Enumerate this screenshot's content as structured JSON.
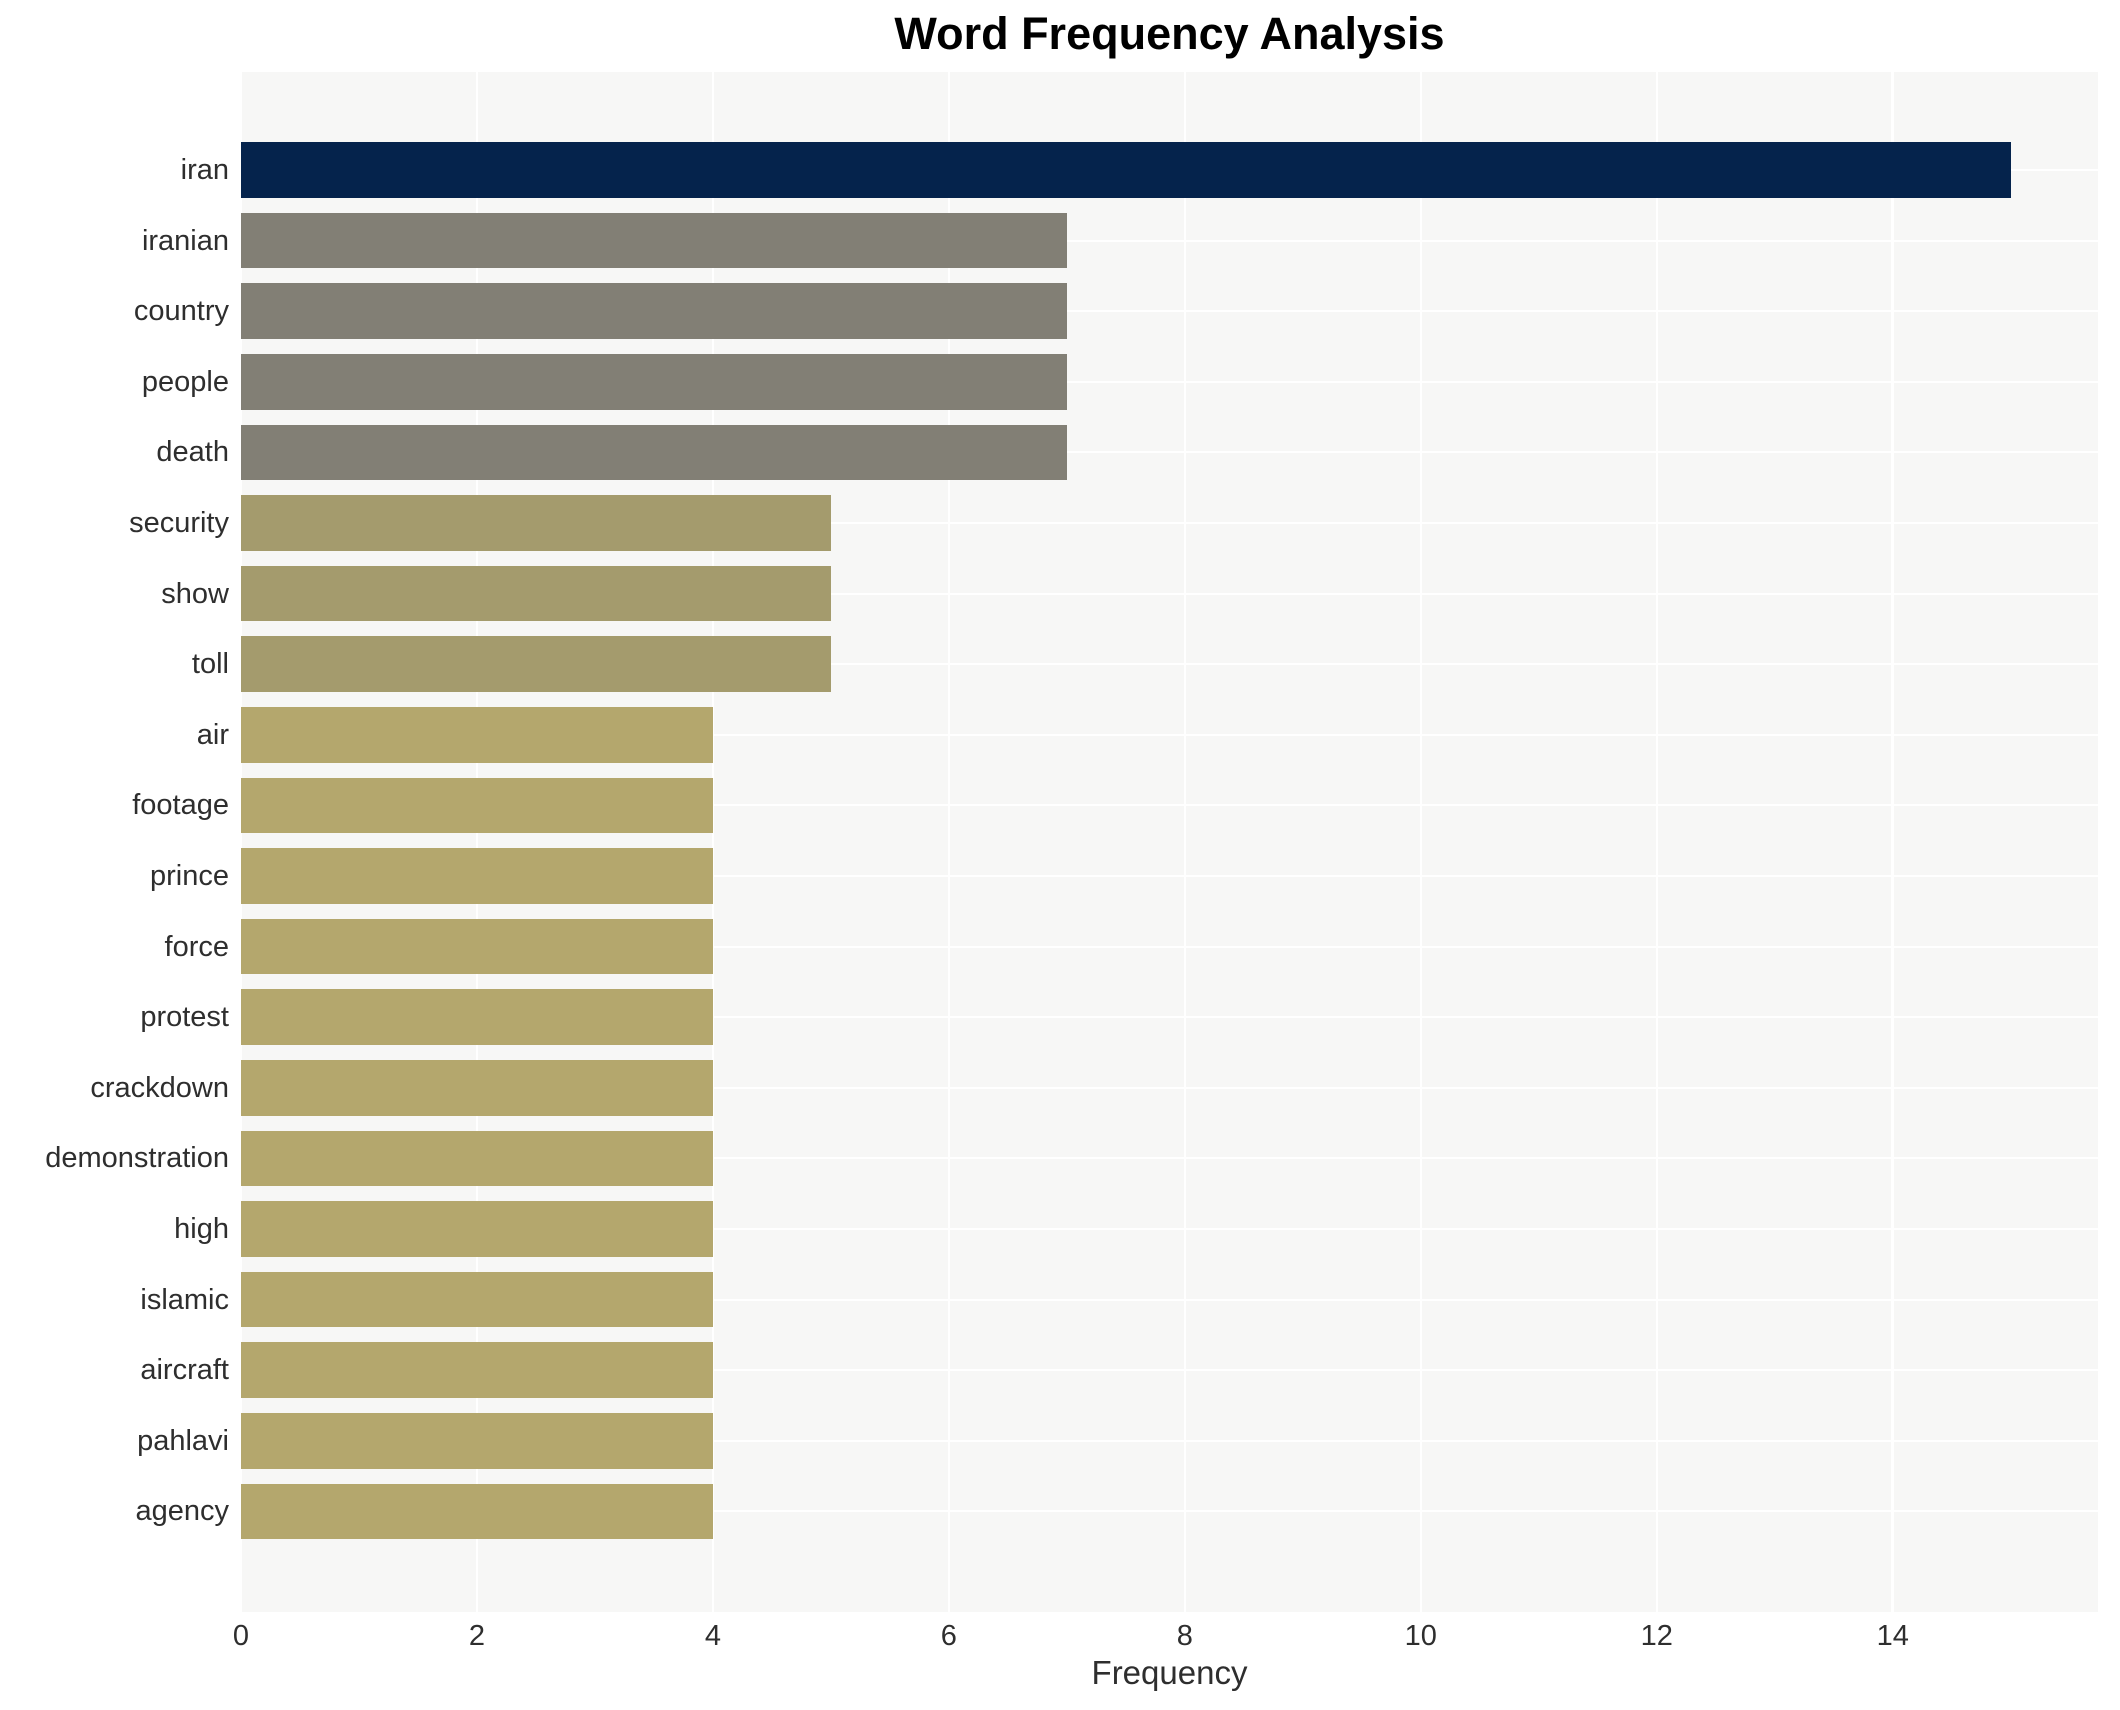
{
  "chart": {
    "title": "Word Frequency Analysis",
    "xlabel": "Frequency"
  },
  "chart_data": {
    "type": "bar",
    "orientation": "horizontal",
    "title": "Word Frequency Analysis",
    "xlabel": "Frequency",
    "ylabel": "",
    "categories": [
      "iran",
      "iranian",
      "country",
      "people",
      "death",
      "security",
      "show",
      "toll",
      "air",
      "footage",
      "prince",
      "force",
      "protest",
      "crackdown",
      "demonstration",
      "high",
      "islamic",
      "aircraft",
      "pahlavi",
      "agency"
    ],
    "values": [
      15,
      7,
      7,
      7,
      7,
      5,
      5,
      5,
      4,
      4,
      4,
      4,
      4,
      4,
      4,
      4,
      4,
      4,
      4,
      4
    ],
    "bar_colors": [
      "#05234c",
      "#827f75",
      "#827f75",
      "#827f75",
      "#827f75",
      "#a49b6d",
      "#a49b6d",
      "#a49b6d",
      "#b4a76d",
      "#b4a76d",
      "#b4a76d",
      "#b4a76d",
      "#b4a76d",
      "#b4a76d",
      "#b4a76d",
      "#b4a76d",
      "#b4a76d",
      "#b4a76d",
      "#b4a76d",
      "#b4a76d"
    ],
    "xticks": [
      0,
      2,
      4,
      6,
      8,
      10,
      12,
      14
    ],
    "xlim": [
      0,
      15.74
    ],
    "grid": true,
    "legend": false,
    "panel_bg": "#f7f7f6",
    "gridline_color": "#ffffff",
    "text_color": "#2e2e2e",
    "title_color": "#000000"
  }
}
